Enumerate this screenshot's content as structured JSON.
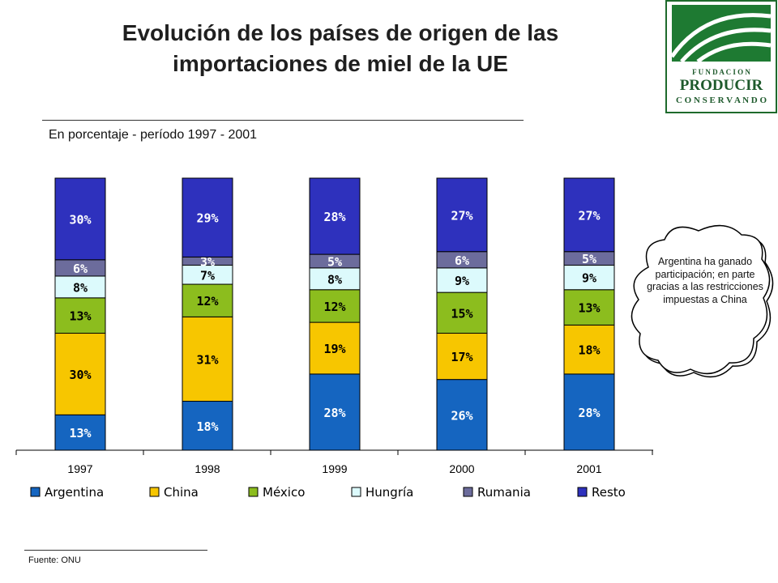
{
  "title": "Evolución de los países de origen de las importaciones de miel de la UE",
  "subtitle": "En porcentaje - período 1997 - 2001",
  "source": "Fuente: ONU",
  "logo": {
    "line1": "F U N D A C I O N",
    "line2": "PRODUCIR",
    "line3": "C O N S E R V A N D O"
  },
  "callout": "Argentina ha ganado participación; en parte gracias a las restricciones impuestas a China",
  "chart_data": {
    "type": "bar",
    "stacked": true,
    "categories": [
      "1997",
      "1998",
      "1999",
      "2000",
      "2001"
    ],
    "series": [
      {
        "name": "Argentina",
        "color": "#1565c0",
        "values": [
          13,
          18,
          28,
          26,
          28
        ],
        "labels": [
          "13%",
          "18%",
          "28%",
          "26%",
          "28%"
        ]
      },
      {
        "name": "China",
        "color": "#f7c600",
        "values": [
          30,
          31,
          19,
          17,
          18
        ],
        "labels": [
          "30%",
          "31%",
          "19%",
          "17%",
          "18%"
        ]
      },
      {
        "name": "México",
        "color": "#8cbd1e",
        "values": [
          13,
          12,
          12,
          15,
          13
        ],
        "labels": [
          "13%",
          "12%",
          "12%",
          "15%",
          "13%"
        ]
      },
      {
        "name": "Hungría",
        "color": "#dcfafc",
        "values": [
          8,
          7,
          8,
          9,
          9
        ],
        "labels": [
          "8%",
          "7%",
          "8%",
          "9%",
          "9%"
        ]
      },
      {
        "name": "Rumania",
        "color": "#6c6c9c",
        "values": [
          6,
          3,
          5,
          6,
          5
        ],
        "labels": [
          "6%",
          "3%",
          "5%",
          "6%",
          "5%"
        ]
      },
      {
        "name": "Resto",
        "color": "#2e31bd",
        "values": [
          30,
          29,
          28,
          27,
          27
        ],
        "labels": [
          "30%",
          "29%",
          "28%",
          "27%",
          "27%"
        ]
      }
    ],
    "ylim": [
      0,
      100
    ],
    "grid": false,
    "legend": "bottom"
  }
}
